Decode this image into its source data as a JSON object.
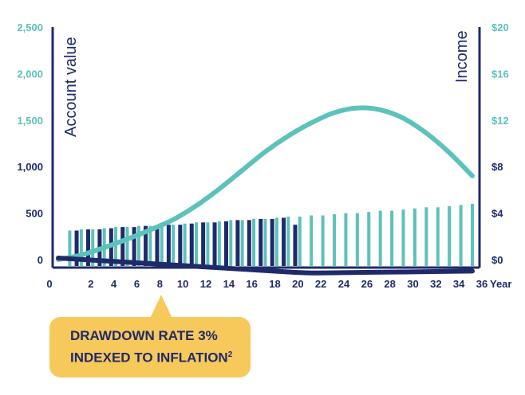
{
  "chart_data": {
    "type": "bar+line",
    "title": "",
    "left_axis_label": "Account value",
    "right_axis_label": "Income",
    "xlabel": "Year",
    "x_ticks": [
      "0",
      "2",
      "4",
      "6",
      "8",
      "10",
      "12",
      "14",
      "16",
      "18",
      "20",
      "22",
      "24",
      "26",
      "28",
      "30",
      "32",
      "34",
      "36"
    ],
    "y_left_ticks": [
      "0",
      "500",
      "1,000",
      "1,500",
      "2,000",
      "2,500"
    ],
    "y_right_ticks": [
      "$0",
      "$4",
      "$8",
      "$12",
      "$16",
      "$20"
    ],
    "y_left_range": [
      0,
      2500
    ],
    "y_right_range": [
      0,
      20
    ],
    "x_range": [
      0,
      37
    ],
    "colors": {
      "teal": "#5cc2bb",
      "navy": "#1f2a6b",
      "left_tick": "#5cc2bb",
      "left_tick_low": "#1f2a6b",
      "right_tick": "#5cc2bb",
      "right_tick_low": "#1f2a6b"
    },
    "series": [
      {
        "name": "Income (teal bars)",
        "type": "bar",
        "axis": "right",
        "color": "#5cc2bb",
        "x": [
          1,
          2,
          3,
          4,
          5,
          6,
          7,
          8,
          9,
          10,
          11,
          12,
          13,
          14,
          15,
          16,
          17,
          18,
          19,
          20,
          21,
          22,
          23,
          24,
          25,
          26,
          27,
          28,
          29,
          30,
          31,
          32,
          33,
          34,
          35,
          36
        ],
        "values": [
          2.5,
          2.6,
          2.6,
          2.7,
          2.8,
          2.8,
          2.9,
          2.9,
          3.0,
          3.0,
          3.1,
          3.2,
          3.2,
          3.3,
          3.4,
          3.4,
          3.5,
          3.5,
          3.6,
          3.7,
          3.7,
          3.8,
          3.8,
          3.9,
          4.0,
          4.0,
          4.1,
          4.2,
          4.2,
          4.3,
          4.4,
          4.5,
          4.5,
          4.6,
          4.7,
          4.8
        ]
      },
      {
        "name": "Income (navy bars)",
        "type": "bar",
        "axis": "right",
        "color": "#1f2a6b",
        "x": [
          1.6,
          2.6,
          3.6,
          4.6,
          5.6,
          6.6,
          7.6,
          8.6,
          9.6,
          10.6,
          11.6,
          12.6,
          13.6,
          14.6,
          15.6,
          16.6,
          17.6,
          18.6,
          19.6,
          20.6
        ],
        "values": [
          2.5,
          2.6,
          2.6,
          2.7,
          2.8,
          2.8,
          2.9,
          2.9,
          3.0,
          3.0,
          3.1,
          3.2,
          3.2,
          3.3,
          3.4,
          3.4,
          3.5,
          3.5,
          3.6,
          3.0
        ]
      },
      {
        "name": "Account value (teal line)",
        "type": "line",
        "axis": "left",
        "color": "#5cc2bb",
        "x": [
          0,
          2,
          4,
          6,
          8,
          10,
          12,
          14,
          16,
          18,
          20,
          22,
          24,
          26,
          28,
          30,
          32,
          34,
          36
        ],
        "values": [
          0,
          50,
          130,
          220,
          320,
          430,
          580,
          760,
          960,
          1160,
          1330,
          1470,
          1580,
          1630,
          1610,
          1520,
          1360,
          1150,
          900
        ]
      },
      {
        "name": "Account value (navy line)",
        "type": "line",
        "axis": "left",
        "color": "#1f2a6b",
        "x": [
          0,
          4,
          8,
          12,
          16,
          20,
          22,
          26,
          30,
          36
        ],
        "values": [
          0,
          -30,
          -60,
          -90,
          -120,
          -150,
          -160,
          -155,
          -150,
          -140
        ]
      }
    ]
  },
  "callout": {
    "line1": "DRAWDOWN RATE 3%",
    "line2": "INDEXED TO INFLATION",
    "superscript": "2"
  }
}
